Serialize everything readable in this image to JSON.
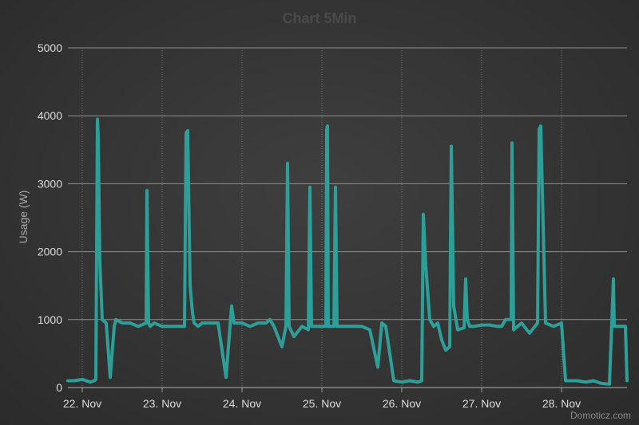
{
  "chart_data": {
    "type": "line",
    "title": "Chart 5Min",
    "xlabel": "",
    "ylabel": "Usage (W)",
    "ylim": [
      0,
      5000
    ],
    "y_ticks": [
      "0",
      "1000",
      "2000",
      "3000",
      "4000",
      "5000"
    ],
    "x_tick_labels": [
      "22. Nov",
      "23. Nov",
      "24. Nov",
      "25. Nov",
      "26. Nov",
      "27. Nov",
      "28. Nov"
    ],
    "x_range_days": [
      21.82,
      28.82
    ],
    "grid": true,
    "legend": "none",
    "series_color": "#2e9e98",
    "credit": "Domoticz.com",
    "series": [
      {
        "x": [
          21.82,
          21.9,
          22.0,
          22.1,
          22.15,
          22.17,
          22.19,
          22.2,
          22.22,
          22.25,
          22.3,
          22.35,
          22.4,
          22.42,
          22.5,
          22.6,
          22.7,
          22.8,
          22.81,
          22.83,
          22.85,
          22.9,
          23.0,
          23.1,
          23.2,
          23.28,
          23.3,
          23.32,
          23.35,
          23.38,
          23.4,
          23.45,
          23.5,
          23.6,
          23.7,
          23.8,
          23.85,
          23.87,
          23.9,
          24.0,
          24.1,
          24.2,
          24.3,
          24.35,
          24.4,
          24.5,
          24.55,
          24.57,
          24.59,
          24.65,
          24.75,
          24.83,
          24.85,
          24.87,
          24.9,
          25.0,
          25.05,
          25.06,
          25.07,
          25.08,
          25.1,
          25.15,
          25.17,
          25.19,
          25.2,
          25.3,
          25.4,
          25.5,
          25.6,
          25.7,
          25.75,
          25.8,
          25.9,
          26.0,
          26.1,
          26.2,
          26.25,
          26.27,
          26.3,
          26.35,
          26.4,
          26.45,
          26.5,
          26.55,
          26.6,
          26.62,
          26.65,
          26.7,
          26.78,
          26.8,
          26.82,
          26.85,
          26.9,
          27.0,
          27.1,
          27.2,
          27.25,
          27.3,
          27.37,
          27.38,
          27.4,
          27.5,
          27.6,
          27.7,
          27.72,
          27.74,
          27.8,
          27.9,
          28.0,
          28.05,
          28.1,
          28.2,
          28.3,
          28.4,
          28.5,
          28.6,
          28.65,
          28.66,
          28.7,
          28.8,
          28.82
        ],
        "y": [
          100,
          100,
          120,
          80,
          100,
          120,
          3950,
          3700,
          1850,
          1000,
          950,
          150,
          900,
          1000,
          950,
          950,
          900,
          950,
          2900,
          950,
          900,
          950,
          900,
          900,
          900,
          900,
          3750,
          3780,
          1500,
          1100,
          950,
          900,
          950,
          950,
          950,
          150,
          900,
          1200,
          950,
          950,
          900,
          950,
          950,
          1000,
          900,
          600,
          900,
          3300,
          900,
          750,
          900,
          850,
          2950,
          900,
          900,
          900,
          900,
          3800,
          3850,
          900,
          900,
          900,
          2950,
          900,
          900,
          900,
          900,
          900,
          850,
          300,
          950,
          900,
          100,
          80,
          100,
          80,
          100,
          2550,
          1800,
          1000,
          900,
          950,
          700,
          550,
          600,
          3550,
          1200,
          850,
          880,
          1600,
          1000,
          900,
          900,
          920,
          920,
          900,
          900,
          1000,
          1000,
          3600,
          850,
          950,
          800,
          950,
          3800,
          3850,
          950,
          900,
          950,
          100,
          100,
          100,
          80,
          100,
          60,
          50,
          1600,
          900,
          900,
          900,
          100
        ]
      }
    ]
  }
}
